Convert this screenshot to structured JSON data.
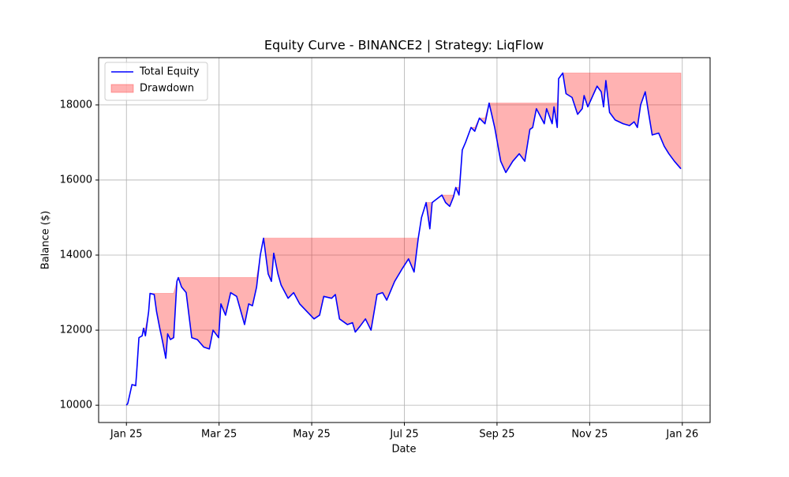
{
  "chart_data": {
    "type": "line",
    "title": "Equity Curve - BINANCE2 | Strategy: LiqFlow",
    "x_label": "Date",
    "y_label": "Balance ($)",
    "x": [
      0,
      0.03,
      0.12,
      0.2,
      0.22,
      0.27,
      0.34,
      0.37,
      0.41,
      0.48,
      0.51,
      0.6,
      0.65,
      0.72,
      0.78,
      0.85,
      0.89,
      0.95,
      1.02,
      1.09,
      1.12,
      1.19,
      1.29,
      1.33,
      1.41,
      1.53,
      1.67,
      1.79,
      1.87,
      1.99,
      2.04,
      2.14,
      2.25,
      2.38,
      2.55,
      2.64,
      2.72,
      2.81,
      2.89,
      2.96,
      3.06,
      3.13,
      3.18,
      3.27,
      3.34,
      3.49,
      3.61,
      3.74,
      4.05,
      4.17,
      4.26,
      4.43,
      4.51,
      4.6,
      4.77,
      4.88,
      4.94,
      5.04,
      5.16,
      5.28,
      5.41,
      5.53,
      5.62,
      5.79,
      5.96,
      6.09,
      6.21,
      6.3,
      6.37,
      6.47,
      6.55,
      6.6,
      6.81,
      6.89,
      6.98,
      7.06,
      7.11,
      7.18,
      7.25,
      7.32,
      7.44,
      7.52,
      7.62,
      7.74,
      7.83,
      7.95,
      8.08,
      8.19,
      8.34,
      8.48,
      8.6,
      8.71,
      8.77,
      8.85,
      9.02,
      9.07,
      9.19,
      9.23,
      9.3,
      9.33,
      9.42,
      9.49,
      9.62,
      9.74,
      9.84,
      9.88,
      9.96,
      10.16,
      10.25,
      10.3,
      10.35,
      10.43,
      10.55,
      10.72,
      10.86,
      10.96,
      11.03,
      11.1,
      11.2,
      11.27,
      11.35,
      11.49,
      11.61,
      11.71,
      11.83,
      11.97
    ],
    "series": [
      {
        "name": "Total Equity",
        "color": "#0000ff",
        "values": [
          10000,
          10050,
          10550,
          10520,
          10850,
          11800,
          11850,
          12050,
          11850,
          12500,
          12980,
          12950,
          12500,
          12050,
          11700,
          11250,
          11900,
          11750,
          11800,
          13300,
          13400,
          13150,
          13000,
          12600,
          11800,
          11750,
          11550,
          11500,
          12000,
          11800,
          12700,
          12400,
          13000,
          12900,
          12150,
          12700,
          12650,
          13150,
          14000,
          14450,
          13500,
          13300,
          14050,
          13500,
          13200,
          12850,
          13000,
          12700,
          12300,
          12400,
          12900,
          12850,
          12950,
          12300,
          12150,
          12200,
          11950,
          12100,
          12300,
          12000,
          12950,
          13000,
          12800,
          13300,
          13650,
          13900,
          13550,
          14450,
          15000,
          15400,
          14700,
          15400,
          15600,
          15400,
          15300,
          15550,
          15800,
          15600,
          16800,
          17000,
          17400,
          17300,
          17650,
          17500,
          18050,
          17400,
          16500,
          16200,
          16500,
          16700,
          16500,
          17350,
          17400,
          17900,
          17500,
          17900,
          17500,
          17950,
          17400,
          18700,
          18850,
          18300,
          18200,
          17750,
          17900,
          18250,
          17950,
          18500,
          18350,
          17950,
          18650,
          17800,
          17600,
          17500,
          17450,
          17550,
          17400,
          18000,
          18350,
          17800,
          17200,
          17250,
          16900,
          16700,
          16500,
          16300
        ]
      }
    ],
    "drawdown": {
      "name": "Drawdown",
      "color": "#ff0000",
      "opacity": 0.3
    },
    "xlim": [
      -0.6,
      12.6
    ],
    "xticks": [
      {
        "value": 0,
        "label": "Jan 25"
      },
      {
        "value": 2,
        "label": "Mar 25"
      },
      {
        "value": 4,
        "label": "May 25"
      },
      {
        "value": 6,
        "label": "Jul 25"
      },
      {
        "value": 8,
        "label": "Sep 25"
      },
      {
        "value": 10,
        "label": "Nov 25"
      },
      {
        "value": 12,
        "label": "Jan 26"
      }
    ],
    "ylim": [
      9540,
      19260
    ],
    "yticks": [
      10000,
      12000,
      14000,
      16000,
      18000
    ],
    "grid": true,
    "legend": "upper-left"
  }
}
